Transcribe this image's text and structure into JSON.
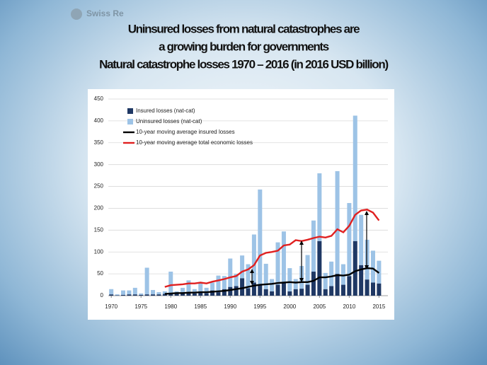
{
  "brand": "Swiss Re",
  "chart_data": {
    "type": "stacked-bar-line",
    "title": [
      "Uninsured losses from natural catastrophes are",
      "a growing burden for governments",
      "Natural catastrophe losses 1970 – 2016 (in 2016 USD billion)"
    ],
    "x": [
      1970,
      1971,
      1972,
      1973,
      1974,
      1975,
      1976,
      1977,
      1978,
      1979,
      1980,
      1981,
      1982,
      1983,
      1984,
      1985,
      1986,
      1987,
      1988,
      1989,
      1990,
      1991,
      1992,
      1993,
      1994,
      1995,
      1996,
      1997,
      1998,
      1999,
      2000,
      2001,
      2002,
      2003,
      2004,
      2005,
      2006,
      2007,
      2008,
      2009,
      2010,
      2011,
      2012,
      2013,
      2014,
      2015
    ],
    "series": [
      {
        "name": "Insured losses (nat-cat)",
        "kind": "bar",
        "color": "#1f3864",
        "values": [
          3,
          1,
          2,
          3,
          3,
          2,
          3,
          3,
          3,
          4,
          4,
          4,
          5,
          7,
          5,
          9,
          6,
          12,
          8,
          15,
          20,
          22,
          40,
          17,
          30,
          25,
          15,
          10,
          25,
          30,
          10,
          15,
          16,
          25,
          55,
          125,
          15,
          22,
          50,
          25,
          45,
          125,
          70,
          37,
          30,
          28
        ]
      },
      {
        "name": "Uninsured losses (nat-cat)",
        "kind": "bar",
        "color": "#9dc3e6",
        "values": [
          12,
          2,
          10,
          9,
          15,
          3,
          61,
          10,
          5,
          6,
          51,
          6,
          13,
          28,
          10,
          19,
          12,
          18,
          38,
          30,
          65,
          28,
          52,
          55,
          110,
          218,
          58,
          28,
          97,
          117,
          53,
          23,
          52,
          68,
          117,
          155,
          37,
          56,
          235,
          47,
          167,
          287,
          115,
          91,
          73,
          52
        ]
      },
      {
        "name": "10-year moving average insured losses",
        "kind": "line",
        "color": "#000000",
        "values": [
          null,
          null,
          null,
          null,
          null,
          null,
          null,
          null,
          null,
          4,
          5,
          6,
          6,
          7,
          7,
          8,
          8,
          9,
          10,
          11,
          13,
          15,
          17,
          20,
          23,
          25,
          26,
          27,
          29,
          30,
          31,
          30,
          31,
          31,
          34,
          42,
          42,
          44,
          47,
          46,
          48,
          56,
          60,
          63,
          62,
          52
        ]
      },
      {
        "name": "10-year moving average total economic losses",
        "kind": "line",
        "color": "#e02020",
        "values": [
          null,
          null,
          null,
          null,
          null,
          null,
          null,
          null,
          null,
          20,
          24,
          25,
          26,
          28,
          28,
          30,
          28,
          32,
          35,
          38,
          42,
          45,
          55,
          60,
          70,
          92,
          98,
          100,
          103,
          115,
          117,
          127,
          125,
          128,
          132,
          135,
          133,
          137,
          152,
          145,
          160,
          185,
          195,
          197,
          190,
          172
        ]
      }
    ],
    "xlim": [
      1969.5,
      2016.5
    ],
    "xticks": [
      1970,
      1975,
      1980,
      1985,
      1990,
      1995,
      2000,
      2005,
      2010,
      2015
    ],
    "ylim": [
      0,
      450
    ],
    "yticks": [
      0,
      50,
      100,
      150,
      200,
      250,
      300,
      350,
      400,
      450
    ],
    "grid": true
  }
}
